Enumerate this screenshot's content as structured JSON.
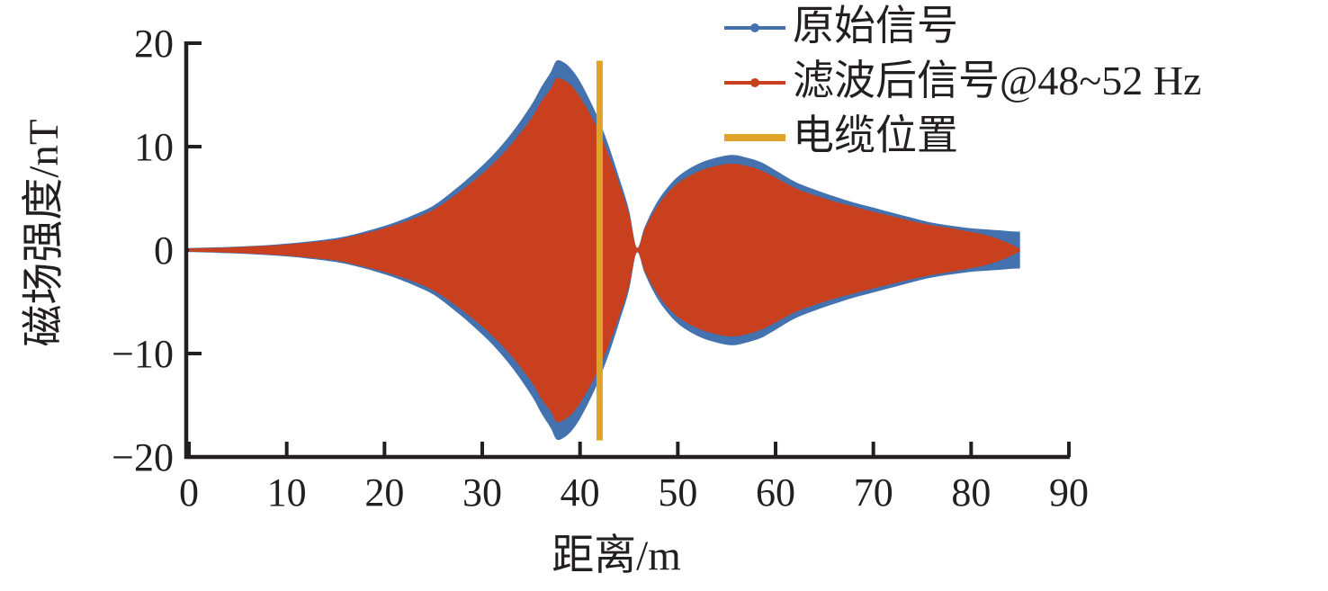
{
  "figure": {
    "background": "#ffffff",
    "text_color": "#231f20"
  },
  "axes": {
    "x": {
      "label": "距离/m",
      "range": [
        0,
        90
      ],
      "ticks": [
        {
          "v": 0,
          "label": "0"
        },
        {
          "v": 10,
          "label": "10"
        },
        {
          "v": 20,
          "label": "20"
        },
        {
          "v": 30,
          "label": "30"
        },
        {
          "v": 40,
          "label": "40"
        },
        {
          "v": 50,
          "label": "50"
        },
        {
          "v": 60,
          "label": "60"
        },
        {
          "v": 70,
          "label": "70"
        },
        {
          "v": 80,
          "label": "80"
        },
        {
          "v": 90,
          "label": "90"
        }
      ]
    },
    "y": {
      "label": "磁场强度/nT",
      "range": [
        -20,
        20
      ],
      "ticks": [
        {
          "v": -20,
          "label": "−20"
        },
        {
          "v": -10,
          "label": "−10"
        },
        {
          "v": 0,
          "label": "0"
        },
        {
          "v": 10,
          "label": "10"
        },
        {
          "v": 20,
          "label": "20"
        }
      ]
    }
  },
  "legend": {
    "position": "top-right",
    "entries": [
      {
        "label": "原始信号",
        "color": "#4472AE",
        "marker": "line-with-dot"
      },
      {
        "label": "滤波后信号@48~52 Hz",
        "color": "#C8401E",
        "marker": "line-with-dot"
      },
      {
        "label": "电缆位置",
        "color": "#DEA428",
        "marker": "thick-line"
      }
    ]
  },
  "chart_data": {
    "type": "line",
    "title": "",
    "xlabel": "距离/m",
    "ylabel": "磁场强度/nT",
    "xlim": [
      0,
      90
    ],
    "ylim": [
      -20,
      20
    ],
    "grid": false,
    "x_ticks": [
      0,
      10,
      20,
      30,
      40,
      50,
      60,
      70,
      80,
      90
    ],
    "y_ticks": [
      -20,
      -10,
      0,
      10,
      20
    ],
    "legend_position": "top-right",
    "note": "Both signals are dense ~50 Hz oscillations along the survey line; they render as solid regions bounded by their ±amplitude envelopes. Envelope points below give [x_m, original_amp_nT, filtered_amp_nT].",
    "cable_position_x": 42,
    "cable_line_y_range": [
      -18.4,
      18.3
    ],
    "signal_x_range": [
      0,
      85
    ],
    "series": [
      {
        "name": "原始信号",
        "color": "#4472AE",
        "peak1": {
          "x": 37.6,
          "amp": 18.3
        },
        "node_x": 45.8,
        "peak2": {
          "x": 55.6,
          "amp": 9.2
        },
        "end_amp": 1.8
      },
      {
        "name": "滤波后信号@48~52 Hz",
        "color": "#C8401E",
        "peak1": {
          "x": 37.6,
          "amp": 16.6
        },
        "node_x": 45.8,
        "peak2": {
          "x": 55.6,
          "amp": 8.35
        },
        "end_amp": 0.1
      },
      {
        "name": "电缆位置",
        "color": "#DEA428",
        "type": "vline",
        "x": 42
      }
    ],
    "envelope_points": [
      [
        0,
        0.2,
        0.16
      ],
      [
        3,
        0.27,
        0.22
      ],
      [
        6,
        0.38,
        0.32
      ],
      [
        9,
        0.55,
        0.47
      ],
      [
        12,
        0.8,
        0.7
      ],
      [
        15,
        1.15,
        1.0
      ],
      [
        17,
        1.55,
        1.4
      ],
      [
        19,
        2.05,
        1.85
      ],
      [
        21,
        2.65,
        2.4
      ],
      [
        23,
        3.4,
        3.05
      ],
      [
        25,
        4.3,
        3.9
      ],
      [
        27,
        5.7,
        5.15
      ],
      [
        29,
        7.3,
        6.6
      ],
      [
        31,
        9.1,
        8.25
      ],
      [
        33,
        11.3,
        10.25
      ],
      [
        35,
        14.0,
        12.7
      ],
      [
        36,
        15.7,
        14.3
      ],
      [
        37,
        17.2,
        15.6
      ],
      [
        37.6,
        18.3,
        16.6
      ],
      [
        38.4,
        18.1,
        16.4
      ],
      [
        39.2,
        17.4,
        15.8
      ],
      [
        40,
        16.3,
        14.8
      ],
      [
        41,
        14.5,
        13.2
      ],
      [
        42,
        12.4,
        11.3
      ],
      [
        43,
        9.9,
        9.0
      ],
      [
        44,
        7.0,
        6.4
      ],
      [
        45,
        3.9,
        3.5
      ],
      [
        45.8,
        0.25,
        0.2
      ],
      [
        46.6,
        2.2,
        2.0
      ],
      [
        47.5,
        4.0,
        3.6
      ],
      [
        48.5,
        5.5,
        5.0
      ],
      [
        50,
        7.1,
        6.45
      ],
      [
        52,
        8.3,
        7.55
      ],
      [
        54,
        8.95,
        8.15
      ],
      [
        55.6,
        9.2,
        8.35
      ],
      [
        57,
        8.95,
        8.15
      ],
      [
        58.5,
        8.5,
        7.7
      ],
      [
        60,
        7.7,
        7.0
      ],
      [
        62,
        6.6,
        6.0
      ],
      [
        64,
        5.85,
        5.3
      ],
      [
        66,
        5.2,
        4.7
      ],
      [
        68,
        4.6,
        4.2
      ],
      [
        70,
        4.1,
        3.7
      ],
      [
        72,
        3.6,
        3.25
      ],
      [
        74,
        3.1,
        2.8
      ],
      [
        76,
        2.65,
        2.4
      ],
      [
        78,
        2.35,
        2.1
      ],
      [
        80,
        2.1,
        1.75
      ],
      [
        81.5,
        2.0,
        1.45
      ],
      [
        83,
        1.9,
        1.0
      ],
      [
        84,
        1.82,
        0.6
      ],
      [
        85,
        1.78,
        0.12
      ]
    ]
  }
}
